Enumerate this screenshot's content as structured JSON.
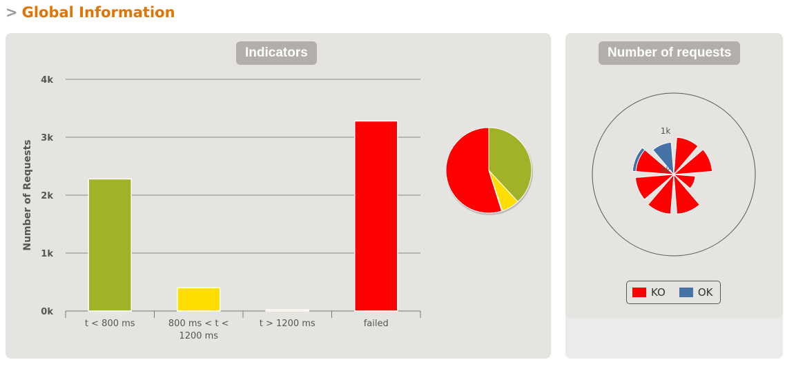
{
  "section": {
    "arrow": ">",
    "title": "Global Information"
  },
  "indicators_panel": {
    "title": "Indicators"
  },
  "requests_panel": {
    "title": "Number of requests"
  },
  "chart_data": [
    {
      "type": "bar",
      "title": "Indicators",
      "ylabel": "Number of Requests",
      "categories": [
        "t < 800 ms",
        "800 ms < t < 1200 ms",
        "t > 1200 ms",
        "failed"
      ],
      "category_lines": [
        [
          "t < 800 ms"
        ],
        [
          "800 ms < t <",
          "1200 ms"
        ],
        [
          "t > 1200 ms"
        ],
        [
          "failed"
        ]
      ],
      "values": [
        2280,
        400,
        20,
        3280
      ],
      "colors": [
        "#a0b228",
        "#ffdd00",
        "#e9a500",
        "#ff0000"
      ],
      "yticks": [
        0,
        1000,
        2000,
        3000,
        4000
      ],
      "ytick_labels": [
        "0k",
        "1k",
        "2k",
        "3k",
        "4k"
      ],
      "ylim": [
        0,
        4000
      ],
      "grid": true
    },
    {
      "type": "pie",
      "values": [
        2280,
        400,
        20,
        3280
      ],
      "colors": [
        "#a0b228",
        "#ffdd00",
        "#e9a500",
        "#ff0000"
      ]
    },
    {
      "type": "pie",
      "subtype": "polar",
      "radial_labels": [
        "1k",
        "0k"
      ],
      "series": [
        {
          "name": "KO",
          "color": "#ff0000",
          "values": [
            900,
            930,
            520,
            960,
            960,
            930,
            920,
            0
          ]
        },
        {
          "name": "OK",
          "color": "#4572a7",
          "values": [
            0,
            0,
            0,
            0,
            0,
            0,
            130,
            780
          ]
        }
      ],
      "legend": "bottom"
    }
  ]
}
